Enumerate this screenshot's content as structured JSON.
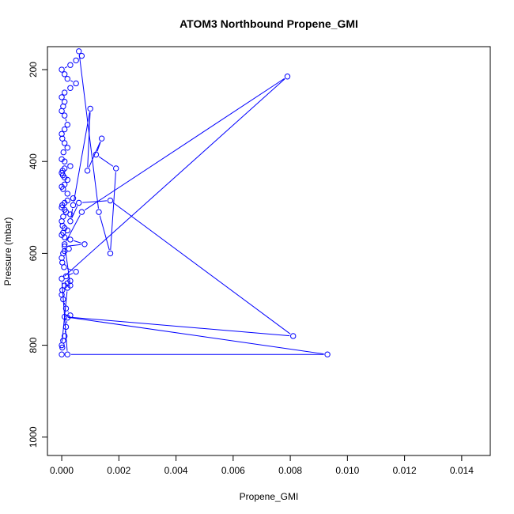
{
  "chart_data": {
    "type": "line",
    "title": "ATOM3 Northbound Propene_GMI",
    "xlabel": "Propene_GMI",
    "ylabel": "Pressure (mbar)",
    "xlim": [
      -0.0005,
      0.015
    ],
    "ylim": [
      1040,
      150
    ],
    "y_reversed": true,
    "grid": false,
    "legend": "none",
    "x_ticks": [
      "0.000",
      "0.002",
      "0.004",
      "0.006",
      "0.008",
      "0.010",
      "0.012",
      "0.014"
    ],
    "x_tick_values": [
      0,
      0.002,
      0.004,
      0.006,
      0.008,
      0.01,
      0.012,
      0.014
    ],
    "y_ticks": [
      "200",
      "400",
      "600",
      "800",
      "1000"
    ],
    "y_tick_values": [
      200,
      400,
      600,
      800,
      1000
    ],
    "color": "#0000ff",
    "marker": "open-circle",
    "series": [
      {
        "x": [
          0.0,
          2e-05,
          5e-05,
          0.0001,
          0.00015,
          0.0002,
          0.0003,
          0.00015,
          5e-05,
          0.0,
          2e-05,
          0.0001,
          0.0002,
          0.0003,
          0.00015,
          0.0005,
          8e-05,
          2e-05,
          0.0,
          5e-05,
          0.0001,
          0.00025,
          0.0001,
          0.0008,
          0.0003,
          0.0001,
          0.0,
          5e-05,
          0.0002,
          0.0001,
          3e-05,
          0.0,
          5e-05,
          0.0003,
          0.00015,
          0.0001,
          0.0,
          2e-05,
          0.0001,
          0.0002,
          0.0004,
          0.0002,
          5e-05,
          0.0,
          0.0001,
          0.0002,
          0.0001,
          4e-05,
          0.0,
          3e-05,
          0.0001,
          0.0003,
          0.0001,
          0.0,
          6e-05,
          0.0002,
          0.0001,
          2e-05,
          0.0,
          0.0001,
          0.0002,
          0.0001,
          0.0,
          5e-05,
          0.0001,
          0.0,
          0.0001,
          0.0003,
          0.0005,
          0.0002,
          0.0001,
          0.0,
          0.0003,
          0.0005,
          0.0007,
          0.0006,
          0.0013,
          0.0017,
          0.0019,
          0.0012,
          0.0014,
          0.0009,
          0.001,
          0.0004,
          0.0003,
          0.0006,
          0.0017,
          0.0081,
          0.0001,
          0.0093,
          0.0002,
          0.0,
          0.0079,
          0.0007,
          0.0001,
          0.0003,
          0.0002,
          0.0
        ],
        "y": [
          820,
          805,
          790,
          780,
          760,
          740,
          735,
          720,
          700,
          690,
          680,
          670,
          665,
          660,
          650,
          640,
          630,
          620,
          610,
          600,
          595,
          590,
          585,
          580,
          570,
          565,
          560,
          555,
          550,
          545,
          540,
          530,
          520,
          515,
          510,
          505,
          500,
          495,
          490,
          485,
          480,
          470,
          460,
          455,
          450,
          440,
          435,
          430,
          425,
          420,
          415,
          410,
          400,
          395,
          380,
          370,
          360,
          350,
          340,
          330,
          320,
          300,
          290,
          280,
          270,
          260,
          250,
          240,
          230,
          220,
          210,
          200,
          190,
          180,
          170,
          160,
          510,
          600,
          415,
          385,
          350,
          420,
          285,
          495,
          530,
          490,
          485,
          780,
          738,
          820,
          820,
          655,
          215,
          510,
          580,
          670,
          675,
          800
        ]
      }
    ]
  }
}
